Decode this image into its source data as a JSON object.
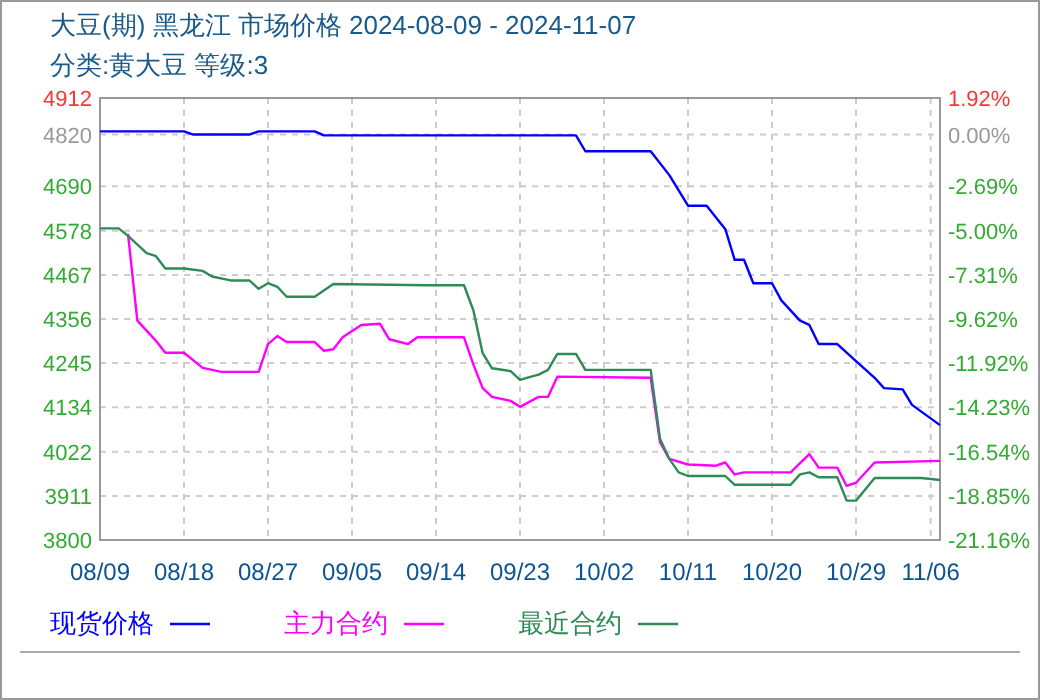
{
  "chart_data": {
    "type": "line",
    "title": "大豆(期) 黑龙江 市场价格 2024-08-09 - 2024-11-07",
    "subtitle": "分类:黄大豆 等级:3",
    "xlim": [
      "2024-08-09",
      "2024-11-07"
    ],
    "xticks": [
      {
        "value": "2024-08-09",
        "label": "08/09"
      },
      {
        "value": "2024-08-18",
        "label": "08/18"
      },
      {
        "value": "2024-08-27",
        "label": "08/27"
      },
      {
        "value": "2024-09-05",
        "label": "09/05"
      },
      {
        "value": "2024-09-14",
        "label": "09/14"
      },
      {
        "value": "2024-09-23",
        "label": "09/23"
      },
      {
        "value": "2024-10-02",
        "label": "10/02"
      },
      {
        "value": "2024-10-11",
        "label": "10/11"
      },
      {
        "value": "2024-10-20",
        "label": "10/20"
      },
      {
        "value": "2024-10-29",
        "label": "10/29"
      },
      {
        "value": "2024-11-06",
        "label": "11/06"
      }
    ],
    "ylim": [
      3800,
      4912
    ],
    "yticks": [
      3800,
      3911,
      4022,
      4134,
      4245,
      4356,
      4467,
      4578,
      4690,
      4820,
      4912
    ],
    "y2lim": [
      -21.16,
      1.92
    ],
    "y2ticks": [
      {
        "value": -21.16,
        "label": "-21.16%"
      },
      {
        "value": -18.85,
        "label": "-18.85%"
      },
      {
        "value": -16.54,
        "label": "-16.54%"
      },
      {
        "value": -14.23,
        "label": "-14.23%"
      },
      {
        "value": -11.92,
        "label": "-11.92%"
      },
      {
        "value": -9.62,
        "label": "-9.62%"
      },
      {
        "value": -7.31,
        "label": "-7.31%"
      },
      {
        "value": -5.0,
        "label": "-5.00%"
      },
      {
        "value": -2.69,
        "label": "-2.69%"
      },
      {
        "value": 0.0,
        "label": "0.00%"
      },
      {
        "value": 1.92,
        "label": "1.92%"
      }
    ],
    "grid": true,
    "legend": "bottom",
    "line_style": "solid",
    "series": [
      {
        "name": "现货价格",
        "color": "#0000ff",
        "x": [
          "2024-08-09",
          "2024-08-18",
          "2024-08-19",
          "2024-08-25",
          "2024-08-26",
          "2024-09-01",
          "2024-09-02",
          "2024-09-29",
          "2024-09-30",
          "2024-10-07",
          "2024-10-09",
          "2024-10-11",
          "2024-10-13",
          "2024-10-15",
          "2024-10-16",
          "2024-10-17",
          "2024-10-18",
          "2024-10-20",
          "2024-10-21",
          "2024-10-23",
          "2024-10-24",
          "2024-10-25",
          "2024-10-27",
          "2024-10-29",
          "2024-10-31",
          "2024-11-01",
          "2024-11-03",
          "2024-11-04",
          "2024-11-07"
        ],
        "values": [
          4828,
          4828,
          4820,
          4820,
          4828,
          4828,
          4818,
          4818,
          4778,
          4778,
          4718,
          4641,
          4641,
          4582,
          4505,
          4505,
          4446,
          4446,
          4403,
          4352,
          4341,
          4293,
          4293,
          4250,
          4208,
          4182,
          4179,
          4140,
          4089
        ]
      },
      {
        "name": "主力合约",
        "color": "#ff00ff",
        "x": [
          "2024-08-12",
          "2024-08-13",
          "2024-08-15",
          "2024-08-16",
          "2024-08-18",
          "2024-08-20",
          "2024-08-22",
          "2024-08-26",
          "2024-08-27",
          "2024-08-28",
          "2024-08-29",
          "2024-09-01",
          "2024-09-02",
          "2024-09-03",
          "2024-09-04",
          "2024-09-06",
          "2024-09-08",
          "2024-09-09",
          "2024-09-11",
          "2024-09-12",
          "2024-09-17",
          "2024-09-18",
          "2024-09-19",
          "2024-09-20",
          "2024-09-22",
          "2024-09-23",
          "2024-09-25",
          "2024-09-26",
          "2024-09-27",
          "2024-10-07",
          "2024-10-08",
          "2024-10-09",
          "2024-10-11",
          "2024-10-14",
          "2024-10-15",
          "2024-10-16",
          "2024-10-17",
          "2024-10-22",
          "2024-10-24",
          "2024-10-25",
          "2024-10-27",
          "2024-10-28",
          "2024-10-29",
          "2024-10-31",
          "2024-11-07"
        ],
        "values": [
          4570,
          4352,
          4301,
          4271,
          4271,
          4233,
          4223,
          4223,
          4293,
          4313,
          4298,
          4298,
          4276,
          4280,
          4310,
          4341,
          4344,
          4305,
          4293,
          4310,
          4310,
          4242,
          4182,
          4160,
          4150,
          4135,
          4160,
          4160,
          4211,
          4208,
          4046,
          4004,
          3990,
          3987,
          3995,
          3965,
          3970,
          3970,
          4016,
          3982,
          3982,
          3936,
          3944,
          3995,
          3999
        ]
      },
      {
        "name": "最近合约",
        "color": "#2e8b57",
        "x": [
          "2024-08-09",
          "2024-08-11",
          "2024-08-12",
          "2024-08-14",
          "2024-08-15",
          "2024-08-16",
          "2024-08-18",
          "2024-08-20",
          "2024-08-21",
          "2024-08-23",
          "2024-08-25",
          "2024-08-26",
          "2024-08-27",
          "2024-08-28",
          "2024-08-29",
          "2024-09-01",
          "2024-09-03",
          "2024-09-13",
          "2024-09-17",
          "2024-09-18",
          "2024-09-19",
          "2024-09-20",
          "2024-09-22",
          "2024-09-23",
          "2024-09-24",
          "2024-09-25",
          "2024-09-26",
          "2024-09-27",
          "2024-09-29",
          "2024-09-30",
          "2024-10-07",
          "2024-10-08",
          "2024-10-09",
          "2024-10-10",
          "2024-10-11",
          "2024-10-15",
          "2024-10-16",
          "2024-10-22",
          "2024-10-23",
          "2024-10-24",
          "2024-10-25",
          "2024-10-27",
          "2024-10-28",
          "2024-10-29",
          "2024-10-31",
          "2024-11-05",
          "2024-11-07"
        ],
        "values": [
          4584,
          4584,
          4565,
          4522,
          4514,
          4483,
          4483,
          4477,
          4463,
          4453,
          4453,
          4432,
          4446,
          4437,
          4412,
          4412,
          4444,
          4441,
          4441,
          4378,
          4270,
          4232,
          4225,
          4203,
          4210,
          4216,
          4228,
          4268,
          4268,
          4228,
          4228,
          4055,
          4004,
          3970,
          3961,
          3961,
          3939,
          3939,
          3965,
          3970,
          3958,
          3958,
          3899,
          3899,
          3956,
          3956,
          3951
        ]
      }
    ]
  }
}
